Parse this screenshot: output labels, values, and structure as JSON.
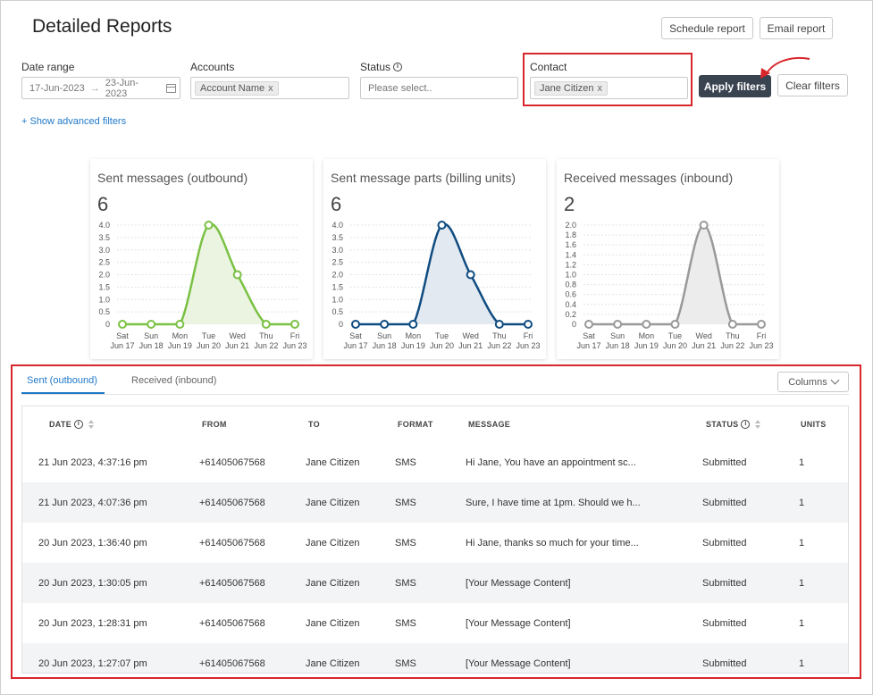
{
  "header": {
    "title": "Detailed Reports",
    "schedule_label": "Schedule report",
    "email_label": "Email report"
  },
  "filters": {
    "date_range": {
      "label": "Date range",
      "start": "17-Jun-2023",
      "end": "23-Jun-2023"
    },
    "accounts": {
      "label": "Accounts",
      "chip": "Account Name"
    },
    "status": {
      "label": "Status",
      "placeholder": "Please select.."
    },
    "contact": {
      "label": "Contact",
      "chip": "Jane Citizen"
    },
    "apply_label": "Apply filters",
    "clear_label": "Clear filters",
    "advanced_link": "+ Show advanced filters"
  },
  "chart_data": [
    {
      "type": "area",
      "title": "Sent messages (outbound)",
      "total": "6",
      "color": "#7ac143",
      "fill": "#eaf4e1",
      "categories": [
        "Sat Jun 17",
        "Sun Jun 18",
        "Mon Jun 19",
        "Tue Jun 20",
        "Wed Jun 21",
        "Thu Jun 22",
        "Fri Jun 23"
      ],
      "values": [
        0,
        0,
        0,
        4,
        2,
        0,
        0
      ],
      "yticks": [
        "4.0",
        "3.5",
        "3.0",
        "2.5",
        "2.0",
        "1.5",
        "1.0",
        "0.5",
        "0"
      ],
      "ylim": [
        0,
        4
      ]
    },
    {
      "type": "area",
      "title": "Sent message parts (billing units)",
      "total": "6",
      "color": "#0f4c81",
      "fill": "#e3e9f0",
      "categories": [
        "Sat Jun 17",
        "Sun Jun 18",
        "Mon Jun 19",
        "Tue Jun 20",
        "Wed Jun 21",
        "Thu Jun 22",
        "Fri Jun 23"
      ],
      "values": [
        0,
        0,
        0,
        4,
        2,
        0,
        0
      ],
      "yticks": [
        "4.0",
        "3.5",
        "3.0",
        "2.5",
        "2.0",
        "1.5",
        "1.0",
        "0.5",
        "0"
      ],
      "ylim": [
        0,
        4
      ]
    },
    {
      "type": "area",
      "title": "Received messages (inbound)",
      "total": "2",
      "color": "#999999",
      "fill": "#ececec",
      "categories": [
        "Sat Jun 17",
        "Sun Jun 18",
        "Mon Jun 19",
        "Tue Jun 20",
        "Wed Jun 21",
        "Thu Jun 22",
        "Fri Jun 23"
      ],
      "values": [
        0,
        0,
        0,
        0,
        2,
        0,
        0
      ],
      "yticks": [
        "2.0",
        "1.8",
        "1.6",
        "1.4",
        "1.2",
        "1.0",
        "0.8",
        "0.6",
        "0.4",
        "0.2",
        "0"
      ],
      "ylim": [
        0,
        2
      ]
    }
  ],
  "tabs": {
    "sent": "Sent (outbound)",
    "received": "Received (inbound)",
    "columns_label": "Columns"
  },
  "table": {
    "headers": {
      "date": "DATE",
      "from": "FROM",
      "to": "TO",
      "format": "FORMAT",
      "message": "MESSAGE",
      "status": "STATUS",
      "units": "UNITS"
    },
    "rows": [
      {
        "date": "21 Jun 2023, 4:37:16 pm",
        "from": "+61405067568",
        "to": "Jane Citizen",
        "format": "SMS",
        "message": "Hi Jane, You have an appointment sc...",
        "status": "Submitted",
        "units": "1"
      },
      {
        "date": "21 Jun 2023, 4:07:36 pm",
        "from": "+61405067568",
        "to": "Jane Citizen",
        "format": "SMS",
        "message": "Sure, I have time at 1pm. Should we h...",
        "status": "Submitted",
        "units": "1"
      },
      {
        "date": "20 Jun 2023, 1:36:40 pm",
        "from": "+61405067568",
        "to": "Jane Citizen",
        "format": "SMS",
        "message": "Hi Jane, thanks so much for your time...",
        "status": "Submitted",
        "units": "1"
      },
      {
        "date": "20 Jun 2023, 1:30:05 pm",
        "from": "+61405067568",
        "to": "Jane Citizen",
        "format": "SMS",
        "message": "[Your Message Content]",
        "status": "Submitted",
        "units": "1"
      },
      {
        "date": "20 Jun 2023, 1:28:31 pm",
        "from": "+61405067568",
        "to": "Jane Citizen",
        "format": "SMS",
        "message": "[Your Message Content]",
        "status": "Submitted",
        "units": "1"
      },
      {
        "date": "20 Jun 2023, 1:27:07 pm",
        "from": "+61405067568",
        "to": "Jane Citizen",
        "format": "SMS",
        "message": "[Your Message Content]",
        "status": "Submitted",
        "units": "1"
      }
    ]
  },
  "annotations": {
    "highlight_color": "#d9262b"
  }
}
